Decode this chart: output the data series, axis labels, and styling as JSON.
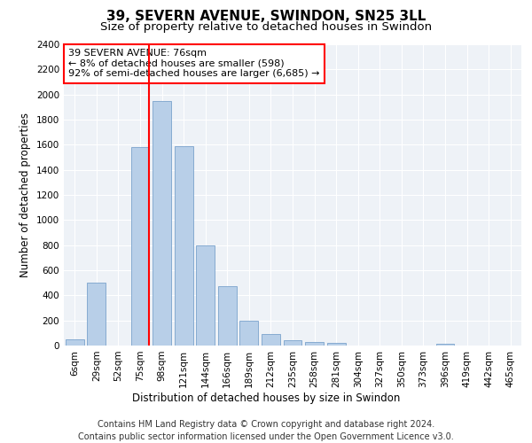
{
  "title": "39, SEVERN AVENUE, SWINDON, SN25 3LL",
  "subtitle": "Size of property relative to detached houses in Swindon",
  "xlabel": "Distribution of detached houses by size in Swindon",
  "ylabel": "Number of detached properties",
  "categories": [
    "6sqm",
    "29sqm",
    "52sqm",
    "75sqm",
    "98sqm",
    "121sqm",
    "144sqm",
    "166sqm",
    "189sqm",
    "212sqm",
    "235sqm",
    "258sqm",
    "281sqm",
    "304sqm",
    "327sqm",
    "350sqm",
    "373sqm",
    "396sqm",
    "419sqm",
    "442sqm",
    "465sqm"
  ],
  "values": [
    50,
    500,
    0,
    1580,
    1950,
    1590,
    800,
    470,
    200,
    90,
    40,
    30,
    20,
    0,
    0,
    0,
    0,
    15,
    0,
    0,
    0
  ],
  "bar_color": "#b8cfe8",
  "bar_edge_color": "#7aa3cc",
  "red_line_index": 3,
  "annotation_text": "39 SEVERN AVENUE: 76sqm\n← 8% of detached houses are smaller (598)\n92% of semi-detached houses are larger (6,685) →",
  "ylim": [
    0,
    2400
  ],
  "yticks": [
    0,
    200,
    400,
    600,
    800,
    1000,
    1200,
    1400,
    1600,
    1800,
    2000,
    2200,
    2400
  ],
  "footer_line1": "Contains HM Land Registry data © Crown copyright and database right 2024.",
  "footer_line2": "Contains public sector information licensed under the Open Government Licence v3.0.",
  "background_color": "#eef2f7",
  "grid_color": "#ffffff",
  "title_fontsize": 11,
  "subtitle_fontsize": 9.5,
  "axis_label_fontsize": 8.5,
  "tick_fontsize": 7.5,
  "footer_fontsize": 7
}
